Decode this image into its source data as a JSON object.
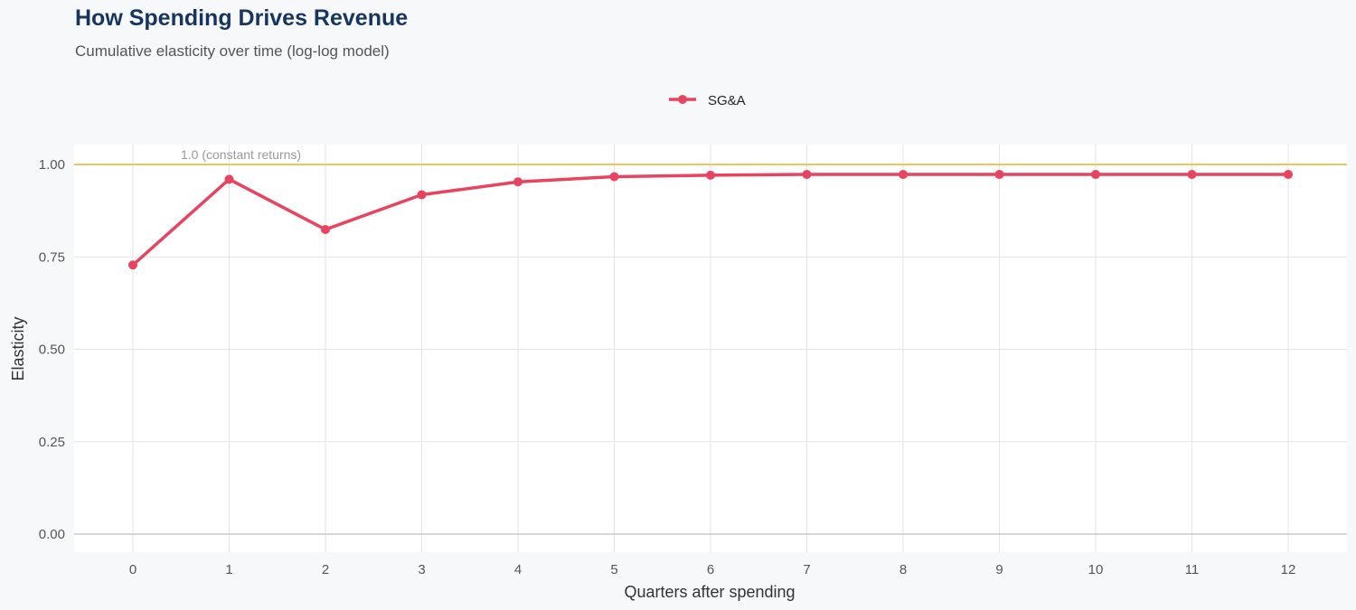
{
  "title": "How Spending Drives Revenue",
  "subtitle": "Cumulative elasticity over time (log-log model)",
  "chart_data": {
    "type": "line",
    "xlabel": "Quarters after spending",
    "ylabel": "Elasticity",
    "x": [
      0,
      1,
      2,
      3,
      4,
      5,
      6,
      7,
      8,
      9,
      10,
      11,
      12
    ],
    "xlim": [
      -0.6,
      12.6
    ],
    "ylim": [
      -0.05,
      1.05
    ],
    "yticks": [
      0,
      0.25,
      0.5,
      0.75,
      1.0
    ],
    "ytick_labels": [
      "0.00",
      "0.25",
      "0.50",
      "0.75",
      "1.00"
    ],
    "xtick_labels": [
      "0",
      "1",
      "2",
      "3",
      "4",
      "5",
      "6",
      "7",
      "8",
      "9",
      "10",
      "11",
      "12"
    ],
    "grid": true,
    "legend_position": "top",
    "series": [
      {
        "name": "SG&A",
        "color": "#e8445f",
        "values": [
          0.728,
          0.96,
          0.824,
          0.918,
          0.953,
          0.967,
          0.971,
          0.973,
          0.973,
          0.973,
          0.973,
          0.973,
          0.973
        ]
      }
    ],
    "reference_line": {
      "y": 1.0,
      "label": "1.0 (constant returns)",
      "color": "#f2c45a"
    }
  }
}
